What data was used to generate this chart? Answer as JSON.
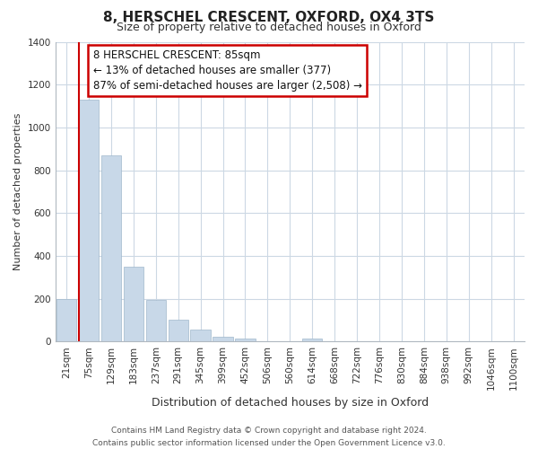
{
  "title": "8, HERSCHEL CRESCENT, OXFORD, OX4 3TS",
  "subtitle": "Size of property relative to detached houses in Oxford",
  "xlabel": "Distribution of detached houses by size in Oxford",
  "ylabel": "Number of detached properties",
  "bar_labels": [
    "21sqm",
    "75sqm",
    "129sqm",
    "183sqm",
    "237sqm",
    "291sqm",
    "345sqm",
    "399sqm",
    "452sqm",
    "506sqm",
    "560sqm",
    "614sqm",
    "668sqm",
    "722sqm",
    "776sqm",
    "830sqm",
    "884sqm",
    "938sqm",
    "992sqm",
    "1046sqm",
    "1100sqm"
  ],
  "bar_heights": [
    200,
    1130,
    870,
    350,
    195,
    100,
    55,
    22,
    15,
    0,
    0,
    12,
    0,
    0,
    0,
    0,
    0,
    0,
    0,
    0,
    0
  ],
  "bar_color": "#c8d8e8",
  "marker_bar_index": 1,
  "marker_line_color": "#cc0000",
  "ylim": [
    0,
    1400
  ],
  "yticks": [
    0,
    200,
    400,
    600,
    800,
    1000,
    1200,
    1400
  ],
  "ann_line1": "8 HERSCHEL CRESCENT: 85sqm",
  "ann_line2": "← 13% of detached houses are smaller (377)",
  "ann_line3": "87% of semi-detached houses are larger (2,508) →",
  "footer_line1": "Contains HM Land Registry data © Crown copyright and database right 2024.",
  "footer_line2": "Contains public sector information licensed under the Open Government Licence v3.0.",
  "background_color": "#ffffff",
  "grid_color": "#ccd8e4",
  "title_fontsize": 11,
  "subtitle_fontsize": 9,
  "ann_fontsize": 8.5,
  "ylabel_fontsize": 8,
  "xlabel_fontsize": 9,
  "tick_fontsize": 7.5,
  "footer_fontsize": 6.5
}
